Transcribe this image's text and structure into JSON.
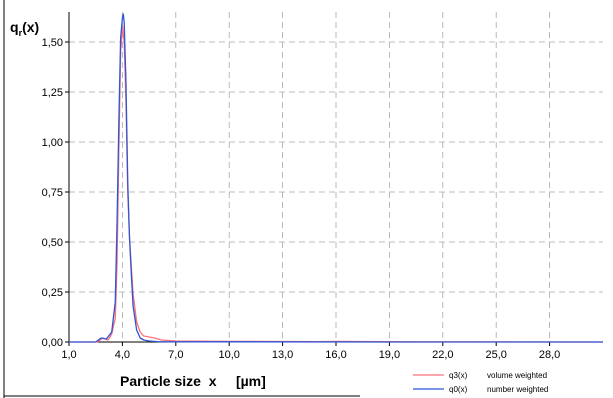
{
  "chart_data": {
    "type": "line",
    "ylabel_main": "q",
    "ylabel_sub": "r",
    "ylabel_suffix": "(x)",
    "xlabel": "Particle size  x     [µm]",
    "xlim": [
      1.0,
      31.0
    ],
    "ylim": [
      0.0,
      1.65
    ],
    "x_ticks": [
      {
        "value": 1.0,
        "label": "1,0"
      },
      {
        "value": 4.0,
        "label": "4,0"
      },
      {
        "value": 7.0,
        "label": "7,0"
      },
      {
        "value": 10.0,
        "label": "10,0"
      },
      {
        "value": 13.0,
        "label": "13,0"
      },
      {
        "value": 16.0,
        "label": "16,0"
      },
      {
        "value": 19.0,
        "label": "19,0"
      },
      {
        "value": 22.0,
        "label": "22,0"
      },
      {
        "value": 25.0,
        "label": "25,0"
      },
      {
        "value": 28.0,
        "label": "28,0"
      }
    ],
    "y_ticks": [
      {
        "value": 0.0,
        "label": "0,00"
      },
      {
        "value": 0.25,
        "label": "0,25"
      },
      {
        "value": 0.5,
        "label": "0,50"
      },
      {
        "value": 0.75,
        "label": "0,75"
      },
      {
        "value": 1.0,
        "label": "1,00"
      },
      {
        "value": 1.25,
        "label": "1,25"
      },
      {
        "value": 1.5,
        "label": "1,50"
      }
    ],
    "grid": true,
    "legend_position": "bottom-right",
    "series": [
      {
        "name": "q3(x)",
        "description": "volume weighted",
        "color": "#ff6f7a",
        "x": [
          1.0,
          2.6,
          2.9,
          3.2,
          3.4,
          3.6,
          3.7,
          3.8,
          3.9,
          4.0,
          4.1,
          4.2,
          4.3,
          4.4,
          4.5,
          4.6,
          4.8,
          5.0,
          5.2,
          5.5,
          5.8,
          6.2,
          7.0,
          10.0,
          15.0,
          16.0,
          20.0,
          31.0
        ],
        "y": [
          0.0,
          0.0,
          0.02,
          0.01,
          0.04,
          0.12,
          0.4,
          0.95,
          1.45,
          1.58,
          1.5,
          1.2,
          0.75,
          0.52,
          0.38,
          0.24,
          0.1,
          0.05,
          0.03,
          0.025,
          0.02,
          0.01,
          0.005,
          0.003,
          0.002,
          0.003,
          0.001,
          0.0
        ]
      },
      {
        "name": "q0(x)",
        "description": "number weighted",
        "color": "#2f55d4",
        "x": [
          1.0,
          2.5,
          2.8,
          3.1,
          3.4,
          3.6,
          3.7,
          3.8,
          3.9,
          4.0,
          4.05,
          4.1,
          4.2,
          4.3,
          4.4,
          4.5,
          4.6,
          4.8,
          5.0,
          5.2,
          5.5,
          6.0,
          7.0,
          10.0,
          20.0,
          31.0
        ],
        "y": [
          0.0,
          0.0,
          0.02,
          0.015,
          0.05,
          0.2,
          0.6,
          1.1,
          1.52,
          1.62,
          1.64,
          1.6,
          1.3,
          0.8,
          0.52,
          0.34,
          0.18,
          0.06,
          0.02,
          0.01,
          0.005,
          0.002,
          0.001,
          0.001,
          0.0,
          0.0
        ]
      }
    ]
  }
}
